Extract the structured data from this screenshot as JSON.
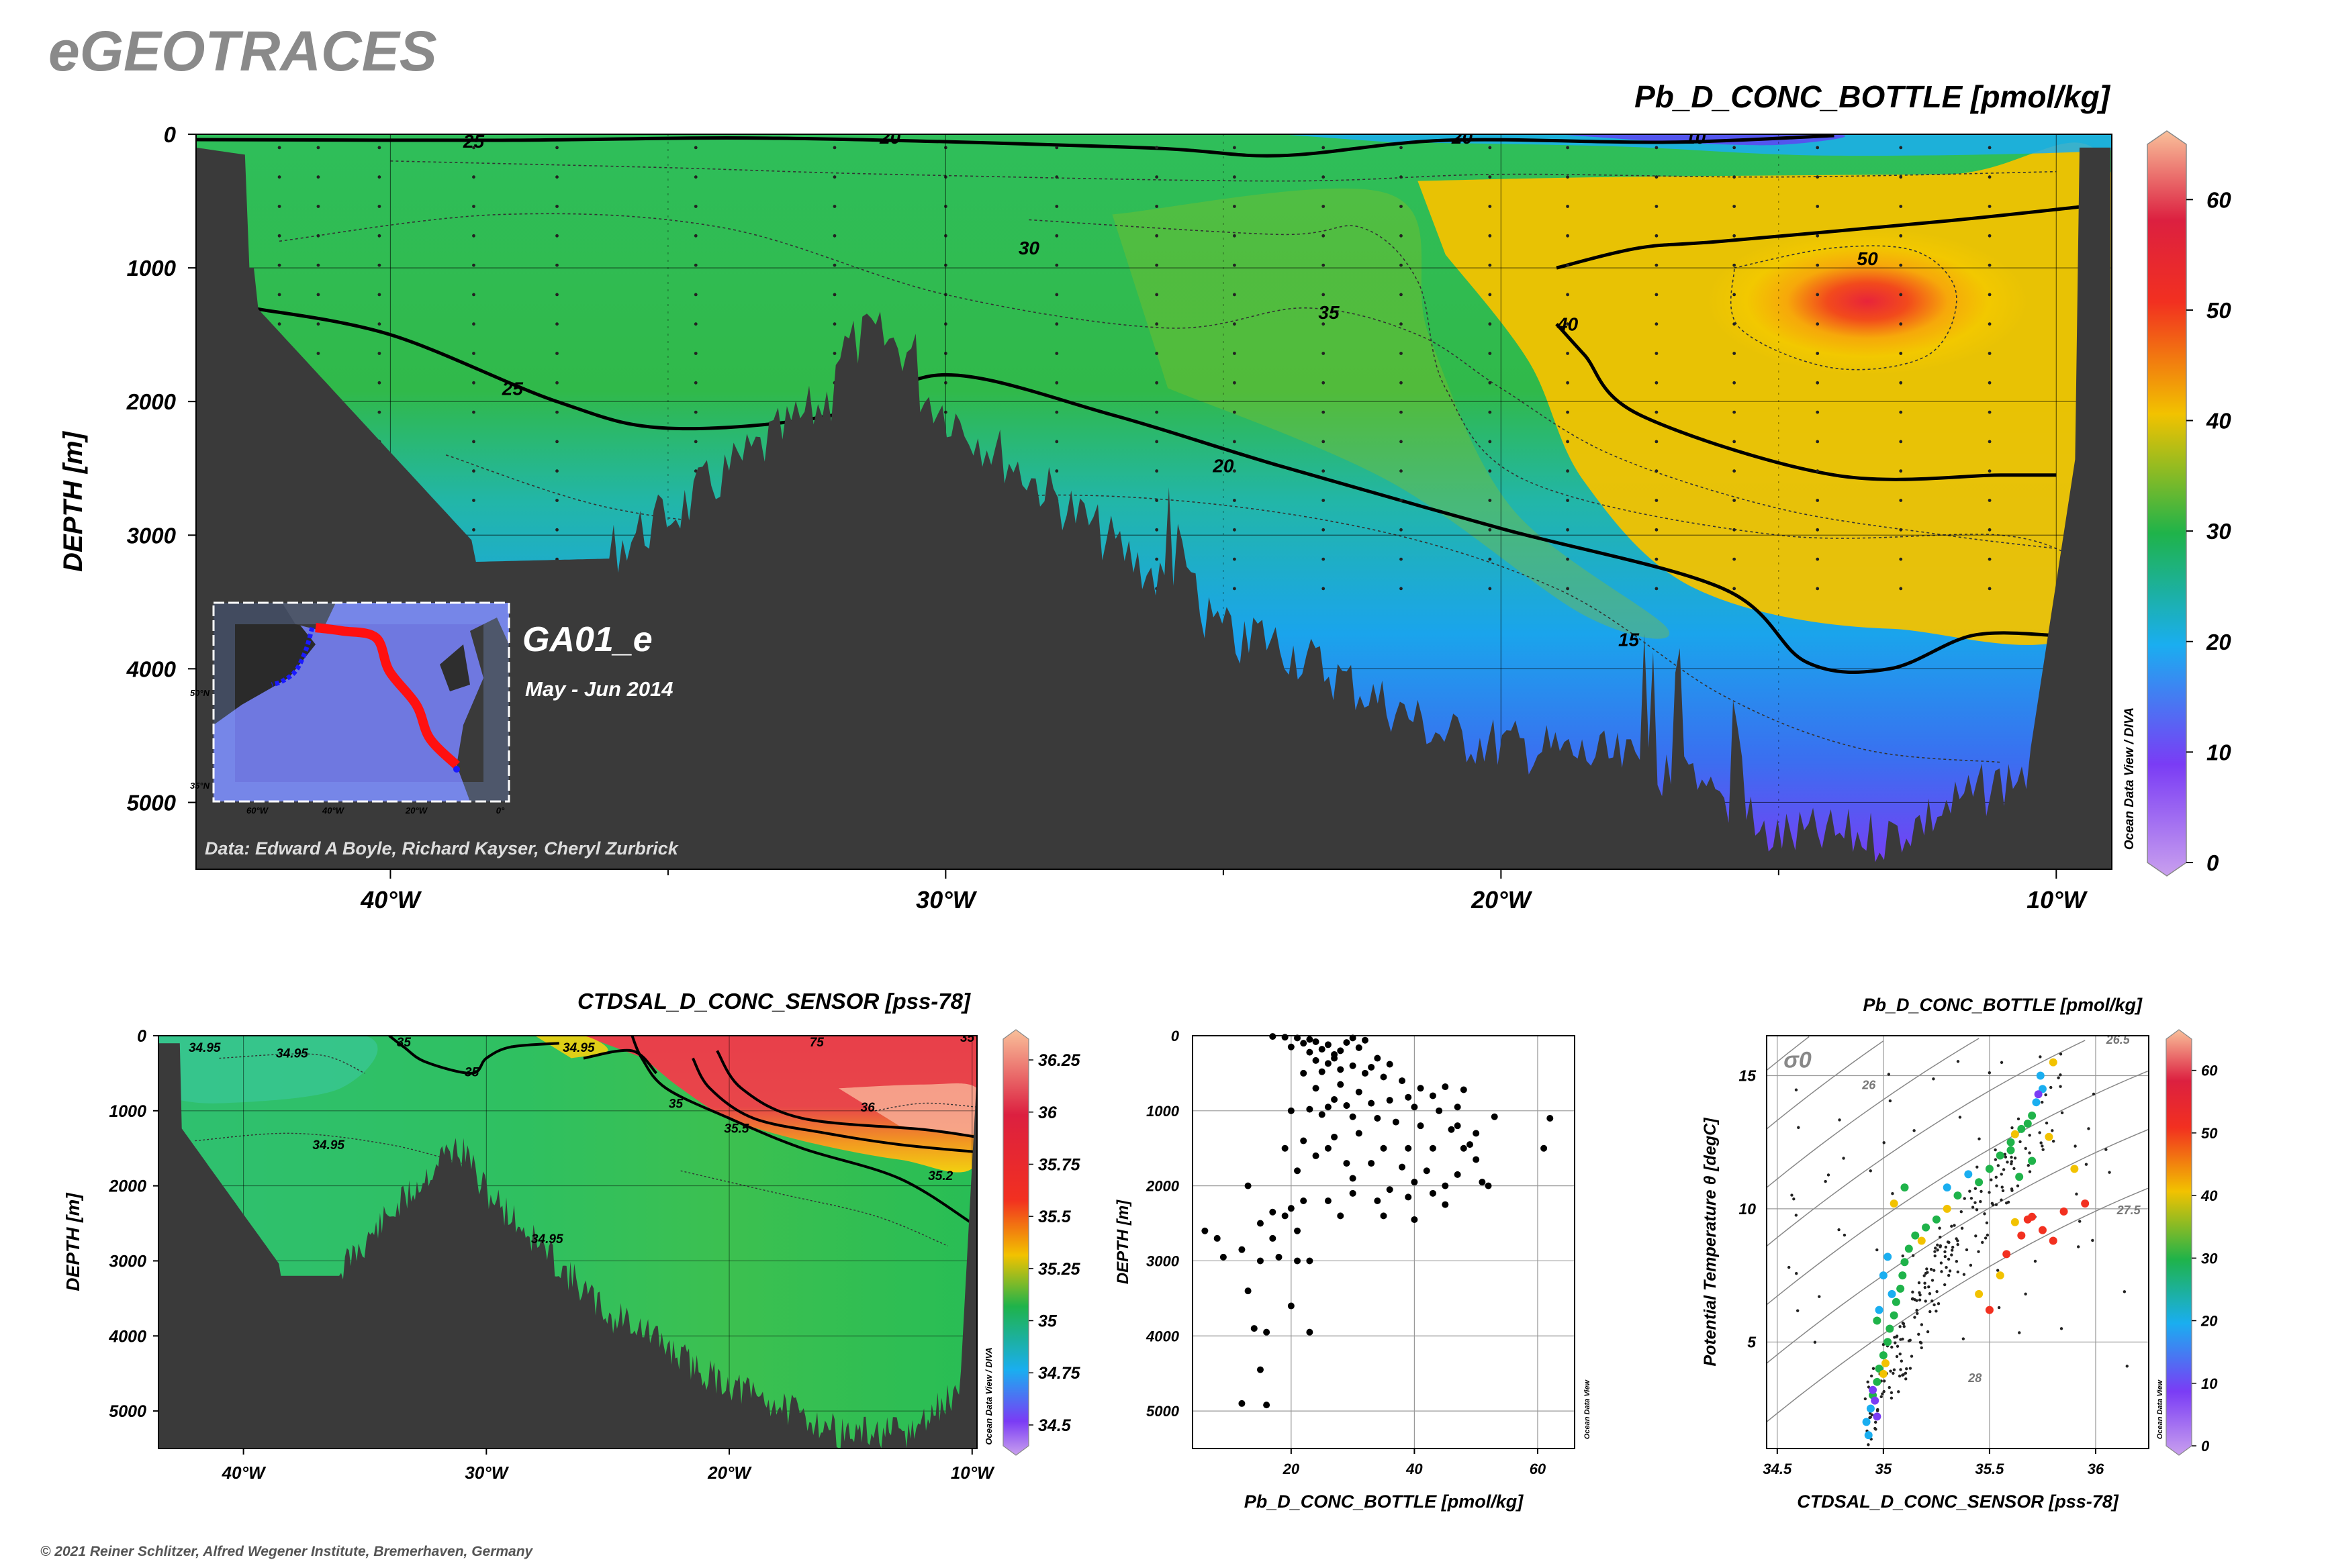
{
  "brand": "eGEOTRACES",
  "copyright": "© 2021 Reiner Schlitzer, Alfred Wegener Institute, Bremerhaven, Germany",
  "watermark": "Ocean Data View / DIVA",
  "watermark_small": "Ocean Data View",
  "colors": {
    "terrain": "#3a3a3a",
    "c0": "#c9a0ee",
    "c10": "#7a3cf5",
    "c20": "#1aaef0",
    "c30": "#1fb34a",
    "c40": "#f2c200",
    "c50": "#f23020",
    "c60": "#dc2040",
    "c65": "#f9c09a"
  },
  "chart_data": [
    {
      "type": "heatmap",
      "title": "Pb_D_CONC_BOTTLE [pmol/kg]",
      "ylabel": "DEPTH [m]",
      "xlabel": "",
      "x_ticks": [
        "40°W",
        "30°W",
        "20°W",
        "10°W"
      ],
      "x_tick_values": [
        -40,
        -30,
        -20,
        -10
      ],
      "xlim": [
        -43.5,
        -9
      ],
      "y_ticks": [
        "0",
        "1000",
        "2000",
        "3000",
        "4000",
        "5000"
      ],
      "y_tick_values": [
        0,
        1000,
        2000,
        3000,
        4000,
        5000
      ],
      "ylim": [
        5500,
        0
      ],
      "colorbar": {
        "ticks": [
          "0",
          "10",
          "20",
          "30",
          "40",
          "50",
          "60"
        ],
        "range": [
          0,
          65
        ]
      },
      "contour_labels": [
        {
          "text": "25",
          "x": -38.5,
          "y": 50
        },
        {
          "text": "20",
          "x": -31,
          "y": 20
        },
        {
          "text": "20",
          "x": -20.7,
          "y": 20
        },
        {
          "text": "10",
          "x": -16.5,
          "y": 20
        },
        {
          "text": "30",
          "x": -28.5,
          "y": 850
        },
        {
          "text": "50",
          "x": -13.4,
          "y": 930
        },
        {
          "text": "35",
          "x": -23.1,
          "y": 1330
        },
        {
          "text": "40",
          "x": -18.8,
          "y": 1420
        },
        {
          "text": "25",
          "x": -37.8,
          "y": 1900
        },
        {
          "text": "20",
          "x": -25,
          "y": 2480
        },
        {
          "text": "15",
          "x": -17.7,
          "y": 3780
        }
      ],
      "grid": true,
      "section_name": "GA01_e",
      "section_dates": "May - Jun 2014",
      "data_credit": "Data: Edward A Boyle, Richard Kayser, Cheryl Zurbrick",
      "inset_map": {
        "x_ticks": [
          "60°W",
          "40°W",
          "20°W",
          "0°"
        ],
        "y_ticks": [
          "50°N",
          "35°N"
        ],
        "track": "red"
      }
    },
    {
      "type": "heatmap",
      "title": "CTDSAL_D_CONC_SENSOR [pss-78]",
      "ylabel": "DEPTH [m]",
      "xlabel": "",
      "x_ticks": [
        "40°W",
        "30°W",
        "20°W",
        "10°W"
      ],
      "x_tick_values": [
        -40,
        -30,
        -20,
        -10
      ],
      "xlim": [
        -43.5,
        -9.8
      ],
      "y_ticks": [
        "0",
        "1000",
        "2000",
        "3000",
        "4000",
        "5000"
      ],
      "y_tick_values": [
        0,
        1000,
        2000,
        3000,
        4000,
        5000
      ],
      "ylim": [
        5500,
        0
      ],
      "colorbar": {
        "ticks": [
          "36.25",
          "36",
          "35.75",
          "35.5",
          "35.25",
          "35",
          "34.75",
          "34.5"
        ],
        "range": [
          34.4,
          36.35
        ]
      },
      "contour_labels": [
        {
          "text": "34.95",
          "x": -41.6,
          "y": 150
        },
        {
          "text": "34.95",
          "x": -38,
          "y": 230
        },
        {
          "text": "35",
          "x": -33.4,
          "y": 80
        },
        {
          "text": "35",
          "x": -30.6,
          "y": 480
        },
        {
          "text": "34.95",
          "x": -26.2,
          "y": 150
        },
        {
          "text": "35",
          "x": -22.2,
          "y": 900
        },
        {
          "text": "35.5",
          "x": -19.7,
          "y": 1230
        },
        {
          "text": "36",
          "x": -14.3,
          "y": 950
        },
        {
          "text": "35.2",
          "x": -11.3,
          "y": 1860
        },
        {
          "text": "34.95",
          "x": -36.5,
          "y": 1450
        },
        {
          "text": "34.95",
          "x": -27.5,
          "y": 2700
        },
        {
          "text": "75",
          "x": -16.4,
          "y": 80
        },
        {
          "text": "35",
          "x": -10.2,
          "y": 20
        }
      ],
      "grid": true
    },
    {
      "type": "scatter",
      "title": "",
      "xlabel": "Pb_D_CONC_BOTTLE [pmol/kg]",
      "ylabel": "DEPTH [m]",
      "xlim": [
        4,
        66
      ],
      "ylim": [
        5500,
        0
      ],
      "x_ticks": [
        "20",
        "40",
        "60"
      ],
      "x_tick_values": [
        20,
        40,
        60
      ],
      "y_ticks": [
        "0",
        "1000",
        "2000",
        "3000",
        "4000",
        "5000"
      ],
      "y_tick_values": [
        0,
        1000,
        2000,
        3000,
        4000,
        5000
      ],
      "grid": true,
      "points": [
        [
          17,
          10
        ],
        [
          19,
          20
        ],
        [
          21,
          30
        ],
        [
          23,
          50
        ],
        [
          24,
          80
        ],
        [
          22,
          100
        ],
        [
          26,
          120
        ],
        [
          20,
          150
        ],
        [
          25,
          180
        ],
        [
          28,
          200
        ],
        [
          23,
          220
        ],
        [
          27,
          250
        ],
        [
          30,
          30
        ],
        [
          32,
          60
        ],
        [
          29,
          90
        ],
        [
          31,
          160
        ],
        [
          27,
          300
        ],
        [
          24,
          330
        ],
        [
          26,
          370
        ],
        [
          30,
          400
        ],
        [
          33,
          420
        ],
        [
          28,
          450
        ],
        [
          25,
          480
        ],
        [
          22,
          500
        ],
        [
          35,
          550
        ],
        [
          38,
          600
        ],
        [
          41,
          700
        ],
        [
          45,
          680
        ],
        [
          48,
          720
        ],
        [
          43,
          800
        ],
        [
          39,
          820
        ],
        [
          36,
          860
        ],
        [
          33,
          900
        ],
        [
          29,
          930
        ],
        [
          26,
          950
        ],
        [
          23,
          980
        ],
        [
          20,
          1000
        ],
        [
          25,
          1050
        ],
        [
          30,
          1080
        ],
        [
          34,
          1100
        ],
        [
          37,
          1150
        ],
        [
          41,
          1200
        ],
        [
          46,
          1250
        ],
        [
          50,
          1300
        ],
        [
          53,
          1080
        ],
        [
          44,
          1000
        ],
        [
          40,
          950
        ],
        [
          47,
          950
        ],
        [
          31,
          1300
        ],
        [
          27,
          1350
        ],
        [
          22,
          1400
        ],
        [
          19,
          1500
        ],
        [
          24,
          1600
        ],
        [
          29,
          1700
        ],
        [
          33,
          1700
        ],
        [
          38,
          1750
        ],
        [
          42,
          1800
        ],
        [
          47,
          1850
        ],
        [
          50,
          1650
        ],
        [
          51,
          1950
        ],
        [
          45,
          2000
        ],
        [
          40,
          1950
        ],
        [
          36,
          2050
        ],
        [
          30,
          2100
        ],
        [
          26,
          2200
        ],
        [
          20,
          2300
        ],
        [
          17,
          2350
        ],
        [
          13,
          2000
        ],
        [
          15,
          2500
        ],
        [
          21,
          2600
        ],
        [
          28,
          2400
        ],
        [
          35,
          2400
        ],
        [
          40,
          2450
        ],
        [
          45,
          2250
        ],
        [
          62,
          1100
        ],
        [
          61,
          1500
        ],
        [
          9,
          2950
        ],
        [
          12,
          2850
        ],
        [
          15,
          3000
        ],
        [
          18,
          2950
        ],
        [
          21,
          3000
        ],
        [
          23,
          3000
        ],
        [
          8,
          2700
        ],
        [
          6,
          2600
        ],
        [
          13,
          3400
        ],
        [
          14,
          3900
        ],
        [
          16,
          3950
        ],
        [
          23,
          3950
        ],
        [
          15,
          4450
        ],
        [
          12,
          4900
        ],
        [
          16,
          4920
        ],
        [
          20,
          3600
        ],
        [
          17,
          2700
        ],
        [
          19,
          2400
        ],
        [
          22,
          2200
        ],
        [
          34,
          300
        ],
        [
          36,
          380
        ],
        [
          32,
          500
        ],
        [
          28,
          650
        ],
        [
          24,
          700
        ],
        [
          31,
          750
        ],
        [
          27,
          850
        ],
        [
          35,
          1500
        ],
        [
          39,
          1500
        ],
        [
          43,
          1500
        ],
        [
          48,
          1500
        ],
        [
          26,
          1500
        ],
        [
          21,
          1800
        ],
        [
          30,
          1900
        ],
        [
          34,
          2200
        ],
        [
          39,
          2150
        ],
        [
          43,
          2100
        ],
        [
          52,
          2000
        ],
        [
          47,
          1200
        ],
        [
          49,
          1450
        ]
      ]
    },
    {
      "type": "scatter",
      "title": "Pb_D_CONC_BOTTLE [pmol/kg]",
      "xlabel": "CTDSAL_D_CONC_SENSOR [pss-78]",
      "ylabel": "Potential Temperature θ [degC]",
      "xlim": [
        34.45,
        36.25
      ],
      "ylim": [
        1,
        16.5
      ],
      "x_ticks": [
        "34.5",
        "35",
        "35.5",
        "36"
      ],
      "x_tick_values": [
        34.5,
        35,
        35.5,
        36
      ],
      "y_ticks": [
        "5",
        "10",
        "15"
      ],
      "y_tick_values": [
        5,
        10,
        15
      ],
      "grid": true,
      "sigma_label": "σ0",
      "isopycnal_labels": [
        "26.5",
        "26",
        "27.5",
        "28"
      ],
      "colorbar": {
        "ticks": [
          "60",
          "50",
          "40",
          "30",
          "20",
          "10",
          "0"
        ],
        "range": [
          0,
          65
        ]
      },
      "points": [
        [
          34.93,
          1.5,
          12
        ],
        [
          34.92,
          2,
          14
        ],
        [
          34.94,
          2.5,
          17
        ],
        [
          34.95,
          3,
          21
        ],
        [
          34.97,
          3.5,
          26
        ],
        [
          34.98,
          4,
          28
        ],
        [
          35.0,
          4.5,
          30
        ],
        [
          35.02,
          5,
          27
        ],
        [
          35.03,
          5.5,
          24
        ],
        [
          35.05,
          6,
          22
        ],
        [
          35.06,
          6.5,
          25
        ],
        [
          35.08,
          7,
          28
        ],
        [
          35.09,
          7.5,
          30
        ],
        [
          35.1,
          8,
          26
        ],
        [
          35.12,
          8.5,
          23
        ],
        [
          35.15,
          9,
          25
        ],
        [
          35.2,
          9.3,
          28
        ],
        [
          35.25,
          9.6,
          30
        ],
        [
          35.3,
          10,
          32
        ],
        [
          35.35,
          10.5,
          30
        ],
        [
          35.45,
          11,
          28
        ],
        [
          35.5,
          11.5,
          26
        ],
        [
          35.55,
          12,
          25
        ],
        [
          35.6,
          12.5,
          28
        ],
        [
          35.65,
          13,
          30
        ],
        [
          35.7,
          13.5,
          22
        ],
        [
          35.72,
          14,
          18
        ],
        [
          35.75,
          14.5,
          15
        ],
        [
          35.8,
          15.5,
          33
        ],
        [
          35.62,
          9.5,
          40
        ],
        [
          35.65,
          9,
          42
        ],
        [
          35.58,
          8.3,
          41
        ],
        [
          35.55,
          7.5,
          39
        ],
        [
          35.45,
          6.8,
          40
        ],
        [
          35.5,
          6.2,
          41
        ],
        [
          35.7,
          9.7,
          45
        ],
        [
          35.85,
          9.9,
          43
        ],
        [
          35.95,
          10.2,
          46
        ],
        [
          35.75,
          9.2,
          48
        ],
        [
          35.8,
          8.8,
          44
        ],
        [
          35.68,
          9.6,
          47
        ],
        [
          34.96,
          2.8,
          10
        ],
        [
          34.95,
          3.2,
          9
        ],
        [
          34.97,
          2.2,
          8
        ],
        [
          35.0,
          3.8,
          38
        ],
        [
          35.01,
          4.2,
          36
        ],
        [
          35.04,
          6.8,
          20
        ],
        [
          35.0,
          7.5,
          18
        ],
        [
          35.02,
          8.2,
          16
        ],
        [
          34.98,
          6.2,
          19
        ],
        [
          34.97,
          5.8,
          21
        ],
        [
          35.1,
          10.8,
          30
        ],
        [
          35.05,
          10.2,
          32
        ],
        [
          35.18,
          8.8,
          35
        ],
        [
          35.3,
          10.8,
          18
        ],
        [
          35.4,
          11.3,
          20
        ],
        [
          35.6,
          12.2,
          30
        ],
        [
          35.62,
          12.8,
          32
        ],
        [
          35.68,
          13.2,
          27
        ],
        [
          35.78,
          12.7,
          31
        ],
        [
          35.7,
          11.8,
          30
        ],
        [
          35.64,
          11.2,
          29
        ],
        [
          35.9,
          11.5,
          34
        ],
        [
          35.74,
          15.0,
          12
        ],
        [
          35.73,
          14.3,
          8
        ]
      ],
      "small_points_description": ""
    }
  ]
}
